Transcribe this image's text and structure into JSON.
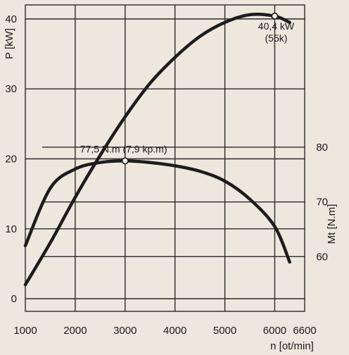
{
  "chart_data": {
    "type": "line",
    "x": [
      1000,
      1500,
      2000,
      2500,
      3000,
      3500,
      4000,
      4500,
      5000,
      5500,
      6000,
      6300
    ],
    "series": [
      {
        "name": "P",
        "axis": "left",
        "values": [
          2,
          8,
          14.5,
          20.5,
          26,
          30.8,
          34.5,
          37.5,
          39.5,
          40.6,
          40.4,
          39.5
        ]
      },
      {
        "name": "Mt",
        "axis": "right",
        "values": [
          62,
          72.5,
          76,
          77.2,
          77.5,
          77.2,
          76.6,
          75.6,
          73.8,
          70.5,
          65.5,
          59
        ]
      }
    ],
    "xlabel": "n [ot/min]",
    "ylabel_left": "P [kW]",
    "ylabel_right": "Mt [N.m]",
    "xlim": [
      1000,
      6600
    ],
    "ylim_left": [
      -1.8,
      42
    ],
    "ylim_right": [
      50,
      106
    ],
    "x_ticks": [
      "1000",
      "2000",
      "3000",
      "4000",
      "5000",
      "6000",
      "6600"
    ],
    "y_ticks_left": [
      "0",
      "10",
      "20",
      "30",
      "40"
    ],
    "y_ticks_right": [
      "60",
      "70",
      "80"
    ],
    "annotations": [
      {
        "lines": [
          "40,4 kW",
          "(55k)"
        ],
        "x": 6000,
        "y": 40.4,
        "series": "P"
      },
      {
        "lines": [
          "77,5 N.m (7,9 kp.m)"
        ],
        "x": 3000,
        "y": 77.5,
        "series": "Mt"
      }
    ],
    "grid": true
  },
  "colors": {
    "background": "#ede7de",
    "ink": "#1c1c1c"
  }
}
